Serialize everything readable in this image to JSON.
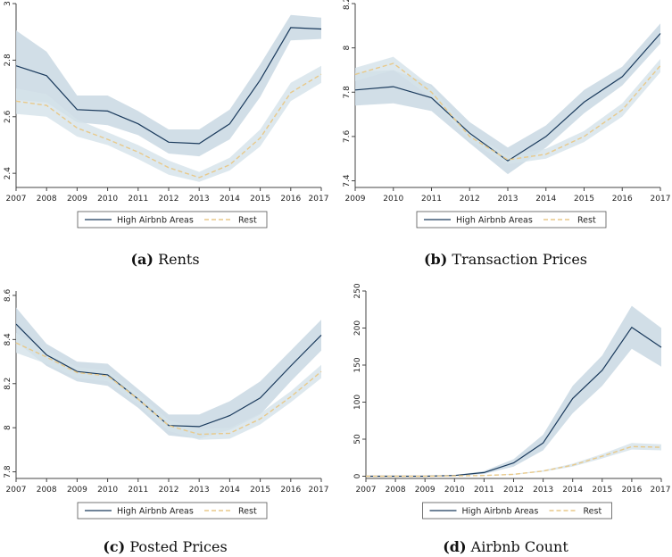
{
  "colors": {
    "high_line": "#1a3a5c",
    "high_band": "#c9d8e3",
    "rest_line": "#e8c98a",
    "rest_band": "#d5e2ea",
    "axis": "#444444"
  },
  "panels": [
    {
      "caption_letter": "(a)",
      "caption_text": "Rents",
      "chart_data": {
        "type": "line",
        "title": "",
        "xlabel": "",
        "ylabel": "",
        "x": [
          2007,
          2008,
          2009,
          2010,
          2011,
          2012,
          2013,
          2014,
          2015,
          2016,
          2017
        ],
        "xlim": [
          2007,
          2017
        ],
        "ylim": [
          2.35,
          3.0
        ],
        "yticks": [
          "2.4",
          "2.6",
          "2.8",
          "3"
        ],
        "ytick_values": [
          2.4,
          2.6,
          2.8,
          3.0
        ],
        "xticks": [
          "2007",
          "2008",
          "2009",
          "2010",
          "2011",
          "2012",
          "2013",
          "2014",
          "2015",
          "2016",
          "2017"
        ],
        "xtick_values": [
          2007,
          2008,
          2009,
          2010,
          2011,
          2012,
          2013,
          2014,
          2015,
          2016,
          2017
        ],
        "series": [
          {
            "name": "High Airbnb Areas",
            "style": "solid",
            "values": [
              2.78,
              2.745,
              2.625,
              2.62,
              2.575,
              2.51,
              2.505,
              2.575,
              2.73,
              2.915,
              2.91
            ],
            "lower": [
              2.66,
              2.65,
              2.58,
              2.57,
              2.535,
              2.47,
              2.46,
              2.52,
              2.67,
              2.87,
              2.875
            ],
            "upper": [
              2.905,
              2.83,
              2.675,
              2.675,
              2.62,
              2.555,
              2.555,
              2.625,
              2.785,
              2.96,
              2.95
            ]
          },
          {
            "name": "Rest",
            "style": "dashed",
            "values": [
              2.655,
              2.64,
              2.56,
              2.52,
              2.475,
              2.42,
              2.385,
              2.43,
              2.525,
              2.685,
              2.75
            ],
            "lower": [
              2.61,
              2.6,
              2.53,
              2.5,
              2.45,
              2.395,
              2.37,
              2.41,
              2.495,
              2.655,
              2.72
            ],
            "upper": [
              2.7,
              2.68,
              2.59,
              2.545,
              2.5,
              2.445,
              2.405,
              2.455,
              2.555,
              2.72,
              2.78
            ]
          }
        ],
        "legend": "bottom"
      }
    },
    {
      "caption_letter": "(b)",
      "caption_text": "Transaction Prices",
      "chart_data": {
        "type": "line",
        "title": "",
        "xlabel": "",
        "ylabel": "",
        "x": [
          2009,
          2010,
          2011,
          2012,
          2013,
          2014,
          2015,
          2016,
          2017
        ],
        "xlim": [
          2009,
          2017
        ],
        "ylim": [
          7.37,
          8.2
        ],
        "yticks": [
          "7.4",
          "7.6",
          "7.8",
          "8",
          "8.2"
        ],
        "ytick_values": [
          7.4,
          7.6,
          7.8,
          8.0,
          8.2
        ],
        "xticks": [
          "2009",
          "2010",
          "2011",
          "2012",
          "2013",
          "2014",
          "2015",
          "2016",
          "2017"
        ],
        "xtick_values": [
          2009,
          2010,
          2011,
          2012,
          2013,
          2014,
          2015,
          2016,
          2017
        ],
        "series": [
          {
            "name": "High Airbnb Areas",
            "style": "solid",
            "values": [
              7.81,
              7.825,
              7.775,
              7.615,
              7.49,
              7.6,
              7.755,
              7.87,
              8.065
            ],
            "lower": [
              7.74,
              7.75,
              7.715,
              7.57,
              7.43,
              7.55,
              7.705,
              7.83,
              8.02
            ],
            "upper": [
              7.89,
              7.9,
              7.835,
              7.665,
              7.55,
              7.65,
              7.81,
              7.915,
              8.11
            ]
          },
          {
            "name": "Rest",
            "style": "dashed",
            "values": [
              7.88,
              7.93,
              7.8,
              7.6,
              7.495,
              7.52,
              7.6,
              7.72,
              7.92
            ],
            "lower": [
              7.85,
              7.9,
              7.775,
              7.58,
              7.475,
              7.5,
              7.575,
              7.69,
              7.89
            ],
            "upper": [
              7.91,
              7.96,
              7.825,
              7.62,
              7.515,
              7.545,
              7.625,
              7.75,
              7.95
            ]
          }
        ],
        "legend": "bottom"
      }
    },
    {
      "caption_letter": "(c)",
      "caption_text": "Posted Prices",
      "chart_data": {
        "type": "line",
        "title": "",
        "xlabel": "",
        "ylabel": "",
        "x": [
          2007,
          2008,
          2009,
          2010,
          2011,
          2012,
          2013,
          2014,
          2015,
          2016,
          2017
        ],
        "xlim": [
          2007,
          2017
        ],
        "ylim": [
          7.77,
          8.62
        ],
        "yticks": [
          "7.8",
          "8",
          "8.2",
          "8.4",
          "8.6"
        ],
        "ytick_values": [
          7.8,
          8.0,
          8.2,
          8.4,
          8.6
        ],
        "xticks": [
          "2007",
          "2008",
          "2009",
          "2010",
          "2011",
          "2012",
          "2013",
          "2014",
          "2015",
          "2016",
          "2017"
        ],
        "xtick_values": [
          2007,
          2008,
          2009,
          2010,
          2011,
          2012,
          2013,
          2014,
          2015,
          2016,
          2017
        ],
        "series": [
          {
            "name": "High Airbnb Areas",
            "style": "solid",
            "values": [
              8.47,
              8.33,
              8.255,
              8.24,
              8.13,
              8.01,
              8.005,
              8.055,
              8.135,
              8.28,
              8.42
            ],
            "lower": [
              8.39,
              8.28,
              8.21,
              8.19,
              8.09,
              7.965,
              7.95,
              7.99,
              8.06,
              8.21,
              8.35
            ],
            "upper": [
              8.545,
              8.38,
              8.3,
              8.29,
              8.175,
              8.06,
              8.06,
              8.12,
              8.21,
              8.35,
              8.49
            ]
          },
          {
            "name": "Rest",
            "style": "dashed",
            "values": [
              8.385,
              8.32,
              8.25,
              8.235,
              8.13,
              8.01,
              7.97,
              7.975,
              8.04,
              8.14,
              8.255
            ],
            "lower": [
              8.34,
              8.29,
              8.225,
              8.21,
              8.105,
              7.985,
              7.945,
              7.95,
              8.015,
              8.115,
              8.225
            ],
            "upper": [
              8.43,
              8.35,
              8.275,
              8.26,
              8.155,
              8.035,
              7.995,
              8.0,
              8.065,
              8.165,
              8.285
            ]
          }
        ],
        "legend": "bottom"
      }
    },
    {
      "caption_letter": "(d)",
      "caption_text": "Airbnb Count",
      "chart_data": {
        "type": "line",
        "title": "",
        "xlabel": "",
        "ylabel": "",
        "x": [
          2007,
          2008,
          2009,
          2010,
          2011,
          2012,
          2013,
          2014,
          2015,
          2016,
          2017
        ],
        "xlim": [
          2007,
          2017
        ],
        "ylim": [
          -3,
          250
        ],
        "yticks": [
          "0",
          "50",
          "100",
          "150",
          "200",
          "250"
        ],
        "ytick_values": [
          0,
          50,
          100,
          150,
          200,
          250
        ],
        "xticks": [
          "2007",
          "2008",
          "2009",
          "2010",
          "2011",
          "2012",
          "2013",
          "2014",
          "2015",
          "2016",
          "2017"
        ],
        "xtick_values": [
          2007,
          2008,
          2009,
          2010,
          2011,
          2012,
          2013,
          2014,
          2015,
          2016,
          2017
        ],
        "series": [
          {
            "name": "High Airbnb Areas",
            "style": "solid",
            "values": [
              0,
              0,
              0,
              1,
              5,
              18,
              45,
              105,
              143,
              201,
              174
            ],
            "lower": [
              0,
              0,
              0,
              0.5,
              3,
              13,
              35,
              85,
              122,
              172,
              148
            ],
            "upper": [
              0,
              0,
              0,
              1.5,
              7,
              23,
              56,
              122,
              163,
              230,
              200
            ]
          },
          {
            "name": "Rest",
            "style": "dashed",
            "values": [
              0,
              0,
              0,
              0.5,
              1,
              2.5,
              7,
              15,
              27,
              40,
              39
            ],
            "lower": [
              0,
              0,
              0,
              0.3,
              0.8,
              2,
              6,
              13,
              24,
              36,
              35
            ],
            "upper": [
              0,
              0,
              0,
              0.7,
              1.2,
              3,
              8,
              17,
              30,
              45,
              43
            ]
          }
        ],
        "legend": "bottom"
      }
    }
  ]
}
